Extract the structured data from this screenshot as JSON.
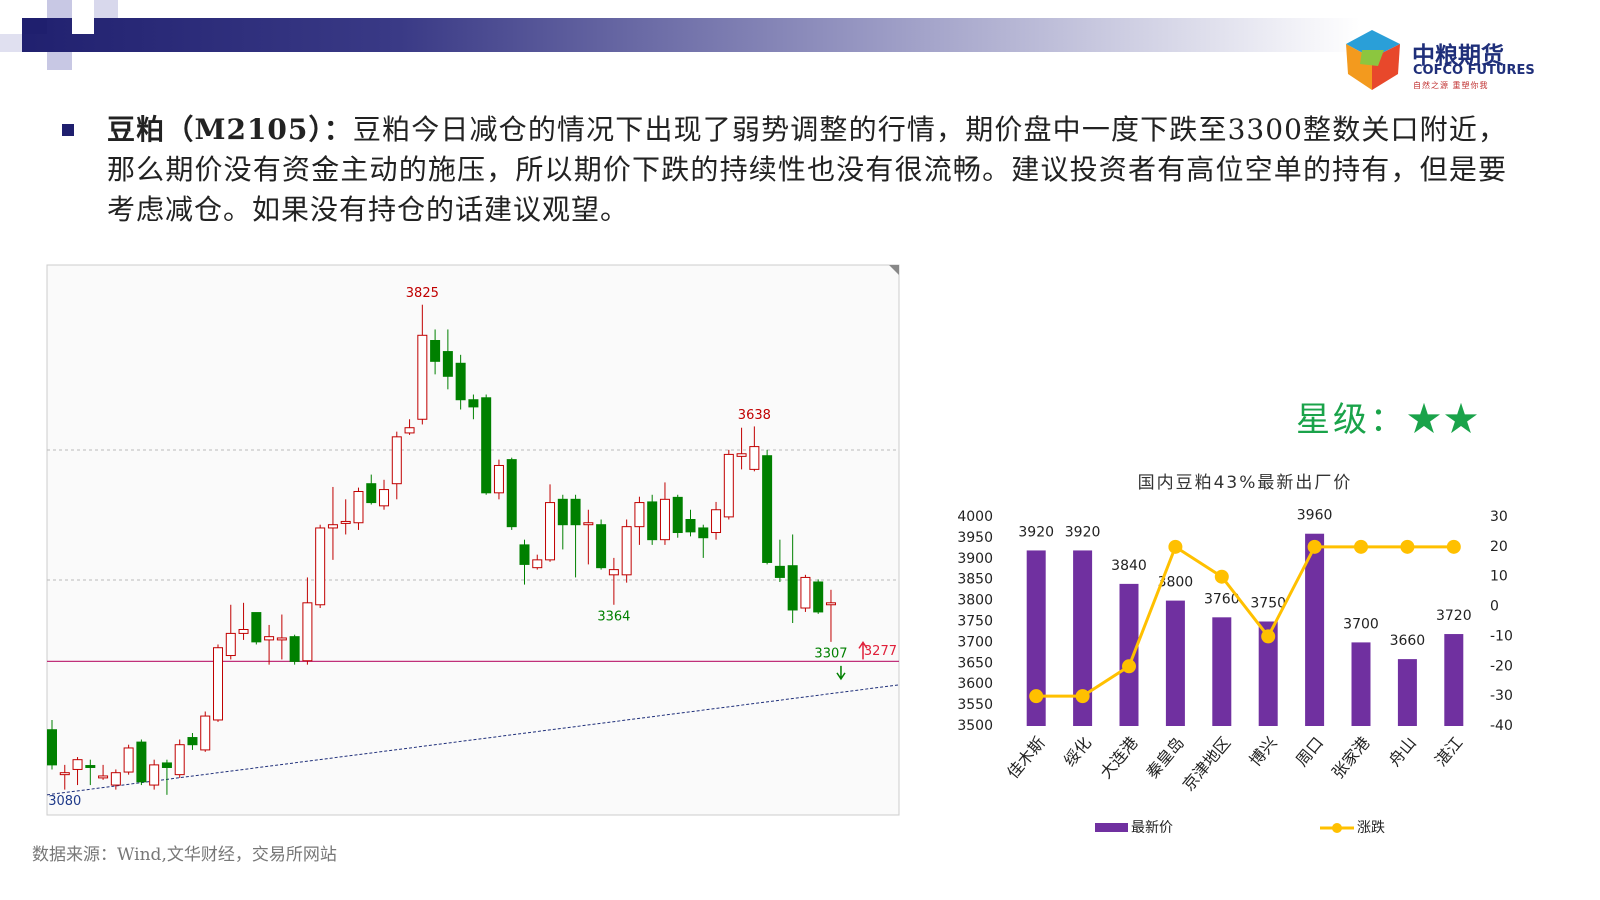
{
  "header": {
    "logo_cn": "中粮期货",
    "logo_en": "COFCO FUTURES",
    "logo_slogan": "自然之源 重塑你我"
  },
  "bullet": {
    "label": "豆粕（M2105）：",
    "text": "豆粕今日减仓的情况下出现了弱势调整的行情，期价盘中一度下跌至3300整数关口附近，那么期价没有资金主动的施压，所以期价下跌的持续性也没有很流畅。建议投资者有高位空单的持有，但是要考虑减仓。如果没有持仓的话建议观望。"
  },
  "rating": "星级：★★",
  "source": "数据来源：Wind,文华财经，交易所网站",
  "chart_data": [
    {
      "type": "candlestick",
      "up_color": "#c00000",
      "down_color": "#008000",
      "open": [
        3172,
        3103,
        3111,
        3117,
        3098,
        3087,
        3107,
        3153,
        3087,
        3121,
        3103,
        3160,
        3141,
        3187,
        3286,
        3320,
        3352,
        3310,
        3310,
        3315,
        3278,
        3364,
        3482,
        3489,
        3490,
        3550,
        3516,
        3550,
        3628,
        3649,
        3770,
        3753,
        3735,
        3679,
        3682,
        3536,
        3587,
        3456,
        3421,
        3433,
        3526,
        3526,
        3487,
        3487,
        3410,
        3410,
        3484,
        3522,
        3464,
        3529,
        3495,
        3482,
        3475,
        3499,
        3592,
        3572,
        3593,
        3423,
        3424,
        3359,
        3399,
        3364
      ],
      "high": [
        3187,
        3118,
        3130,
        3126,
        3118,
        3111,
        3149,
        3157,
        3126,
        3126,
        3157,
        3167,
        3200,
        3303,
        3364,
        3367,
        3352,
        3333,
        3349,
        3318,
        3406,
        3487,
        3545,
        3526,
        3544,
        3564,
        3556,
        3630,
        3649,
        3825,
        3787,
        3787,
        3748,
        3687,
        3687,
        3587,
        3590,
        3464,
        3441,
        3549,
        3533,
        3533,
        3510,
        3495,
        3436,
        3495,
        3530,
        3533,
        3552,
        3533,
        3510,
        3487,
        3522,
        3602,
        3636,
        3638,
        3602,
        3464,
        3472,
        3410,
        3403,
        3387
      ],
      "low": [
        3111,
        3080,
        3087,
        3087,
        3095,
        3080,
        3103,
        3087,
        3080,
        3072,
        3098,
        3141,
        3138,
        3184,
        3280,
        3310,
        3303,
        3272,
        3280,
        3272,
        3272,
        3359,
        3433,
        3472,
        3479,
        3518,
        3510,
        3526,
        3625,
        3641,
        3718,
        3695,
        3664,
        3649,
        3533,
        3526,
        3479,
        3395,
        3418,
        3430,
        3449,
        3406,
        3426,
        3418,
        3364,
        3398,
        3456,
        3456,
        3456,
        3467,
        3469,
        3436,
        3464,
        3495,
        3572,
        3569,
        3426,
        3399,
        3336,
        3353,
        3350,
        3307
      ],
      "close": [
        3118,
        3106,
        3126,
        3114,
        3101,
        3106,
        3144,
        3092,
        3118,
        3114,
        3149,
        3149,
        3193,
        3298,
        3320,
        3326,
        3307,
        3315,
        3313,
        3277,
        3367,
        3482,
        3487,
        3492,
        3538,
        3521,
        3541,
        3622,
        3636,
        3778,
        3738,
        3715,
        3679,
        3668,
        3536,
        3578,
        3484,
        3426,
        3433,
        3521,
        3487,
        3487,
        3490,
        3421,
        3418,
        3484,
        3521,
        3464,
        3526,
        3475,
        3476,
        3467,
        3510,
        3595,
        3596,
        3607,
        3429,
        3406,
        3356,
        3406,
        3353,
        3367
      ],
      "ylim": [
        3041,
        3886
      ],
      "annotations": [
        {
          "value": 3825,
          "at": 29,
          "side": "high",
          "color": "#c00000"
        },
        {
          "value": 3638,
          "at": 55,
          "side": "high",
          "color": "#c00000"
        },
        {
          "value": 3364,
          "at": 44,
          "side": "low",
          "color": "#008000"
        },
        {
          "value": 3307,
          "at": 61,
          "side": "low",
          "color": "#008000"
        },
        {
          "value": 3080,
          "at": 1,
          "side": "low",
          "color": "#1f3a8a"
        }
      ],
      "hline": {
        "value": 3277,
        "color": "#c0307a"
      },
      "trendline": [
        3072,
        3241
      ]
    },
    {
      "type": "bar",
      "title": "国内豆粕43%最新出厂价",
      "categories": [
        "佳木斯",
        "绥化",
        "大连港",
        "秦皇岛",
        "京津地区",
        "博兴",
        "周口",
        "张家港",
        "舟山",
        "湛江"
      ],
      "series": [
        {
          "name": "最新价",
          "color": "#7030a0",
          "values": [
            3920,
            3920,
            3840,
            3800,
            3760,
            3750,
            3960,
            3700,
            3660,
            3720
          ]
        },
        {
          "name": "涨跌",
          "color": "#ffc000",
          "axis": "y2",
          "values": [
            -30,
            -30,
            -20,
            20,
            10,
            -10,
            20,
            20,
            20,
            20
          ]
        }
      ],
      "ylim": [
        3500,
        4000
      ],
      "yticks": [
        3500,
        3550,
        3600,
        3650,
        3700,
        3750,
        3800,
        3850,
        3900,
        3950,
        4000
      ],
      "y2lim": [
        -40,
        30
      ],
      "y2ticks": [
        -40,
        -30,
        -20,
        -10,
        0,
        10,
        20,
        30
      ],
      "legend": "bottom"
    }
  ]
}
